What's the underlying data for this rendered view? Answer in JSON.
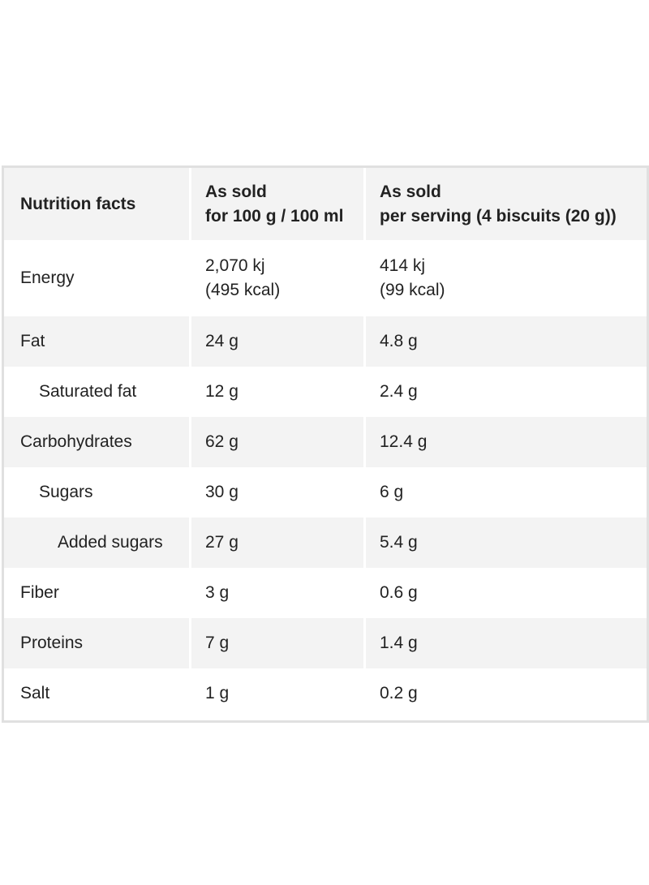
{
  "table": {
    "header": {
      "col1": "Nutrition facts",
      "col2_line1": "As sold",
      "col2_line2": "for 100 g / 100 ml",
      "col3_line1": "As sold",
      "col3_line2": "per serving (4 biscuits (20 g))"
    },
    "rows": [
      {
        "label": "Energy",
        "per100_line1": "2,070 kj",
        "per100_line2": "(495 kcal)",
        "serving_line1": "414 kj",
        "serving_line2": "(99 kcal)",
        "indent": 0
      },
      {
        "label": "Fat",
        "per100": "24 g",
        "serving": "4.8 g",
        "indent": 0
      },
      {
        "label": "Saturated fat",
        "per100": "12 g",
        "serving": "2.4 g",
        "indent": 1
      },
      {
        "label": "Carbohydrates",
        "per100": "62 g",
        "serving": "12.4 g",
        "indent": 0
      },
      {
        "label": "Sugars",
        "per100": "30 g",
        "serving": "6 g",
        "indent": 1
      },
      {
        "label": "Added sugars",
        "per100": "27 g",
        "serving": "5.4 g",
        "indent": 2
      },
      {
        "label": "Fiber",
        "per100": "3 g",
        "serving": "0.6 g",
        "indent": 0
      },
      {
        "label": "Proteins",
        "per100": "7 g",
        "serving": "1.4 g",
        "indent": 0
      },
      {
        "label": "Salt",
        "per100": "1 g",
        "serving": "0.2 g",
        "indent": 0
      }
    ]
  }
}
